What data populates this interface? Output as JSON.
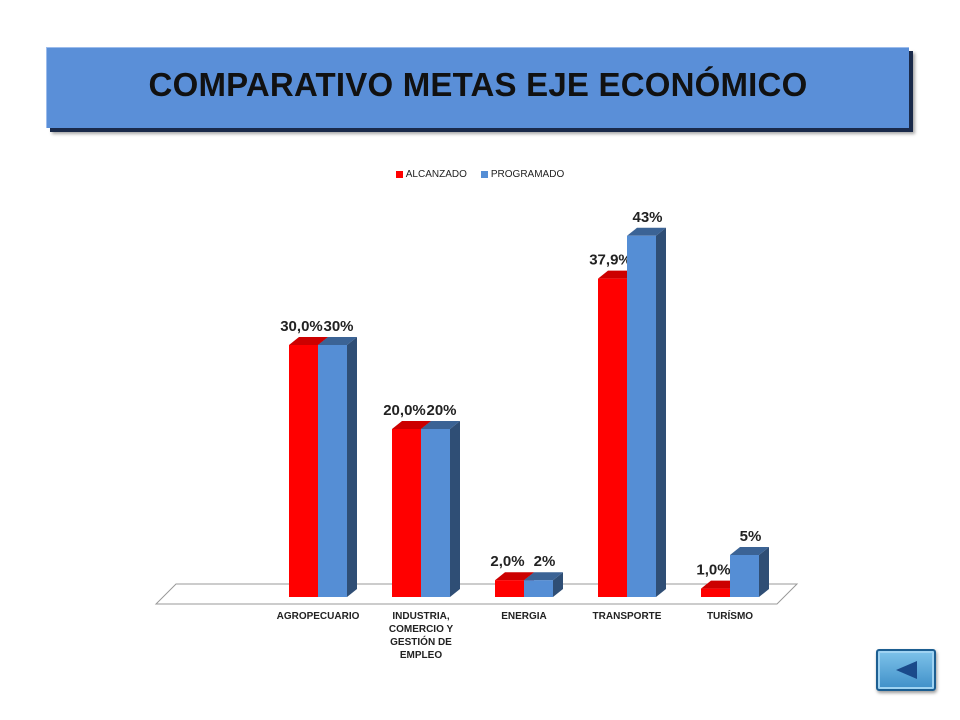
{
  "title": "COMPARATIVO METAS EJE ECONÓMICO",
  "chart_data": {
    "type": "bar",
    "categories": [
      "AGROPECUARIO",
      "INDUSTRIA, COMERCIO Y GESTIÓN DE EMPLEO",
      "ENERGIA",
      "TRANSPORTE",
      "TURÍSMO"
    ],
    "category_label_lines": [
      [
        "AGROPECUARIO"
      ],
      [
        "INDUSTRIA,",
        "COMERCIO Y",
        "GESTIÓN DE",
        "EMPLEO"
      ],
      [
        "ENERGIA"
      ],
      [
        "TRANSPORTE"
      ],
      [
        "TURÍSMO"
      ]
    ],
    "series": [
      {
        "name": "ALCANZADO",
        "values": [
          30.0,
          20.0,
          2.0,
          37.9,
          1.0
        ],
        "labels": [
          "30,0%",
          "20,0%",
          "2,0%",
          "37,9%",
          "1,0%"
        ],
        "color": "#ff0000"
      },
      {
        "name": "PROGRAMADO",
        "values": [
          30,
          20,
          2,
          43,
          5
        ],
        "labels": [
          "30%",
          "20%",
          "2%",
          "43%",
          "5%"
        ],
        "color": "#558ed5"
      }
    ],
    "ylim": [
      0,
      50
    ],
    "legend_position": "top",
    "grid": false
  },
  "nav": {
    "icon": "back-arrow-icon"
  }
}
